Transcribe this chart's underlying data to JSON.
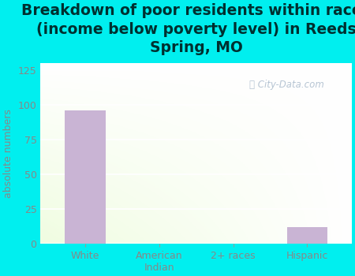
{
  "title": "Breakdown of poor residents within races\n(income below poverty level) in Reeds\nSpring, MO",
  "categories": [
    "White",
    "American\nIndian",
    "2+ races",
    "Hispanic"
  ],
  "values": [
    96,
    0,
    0,
    12
  ],
  "bar_color": "#c9b4d4",
  "ylabel": "absolute numbers",
  "ylabel_color": "#888888",
  "title_color": "#003030",
  "background_color": "#00efef",
  "ylim": [
    0,
    130
  ],
  "yticks": [
    0,
    25,
    50,
    75,
    100,
    125
  ],
  "title_fontsize": 13.5,
  "tick_label_color": "#888888",
  "watermark": "City-Data.com",
  "watermark_color": "#aabbcc",
  "grid_color": "#ddddcc"
}
